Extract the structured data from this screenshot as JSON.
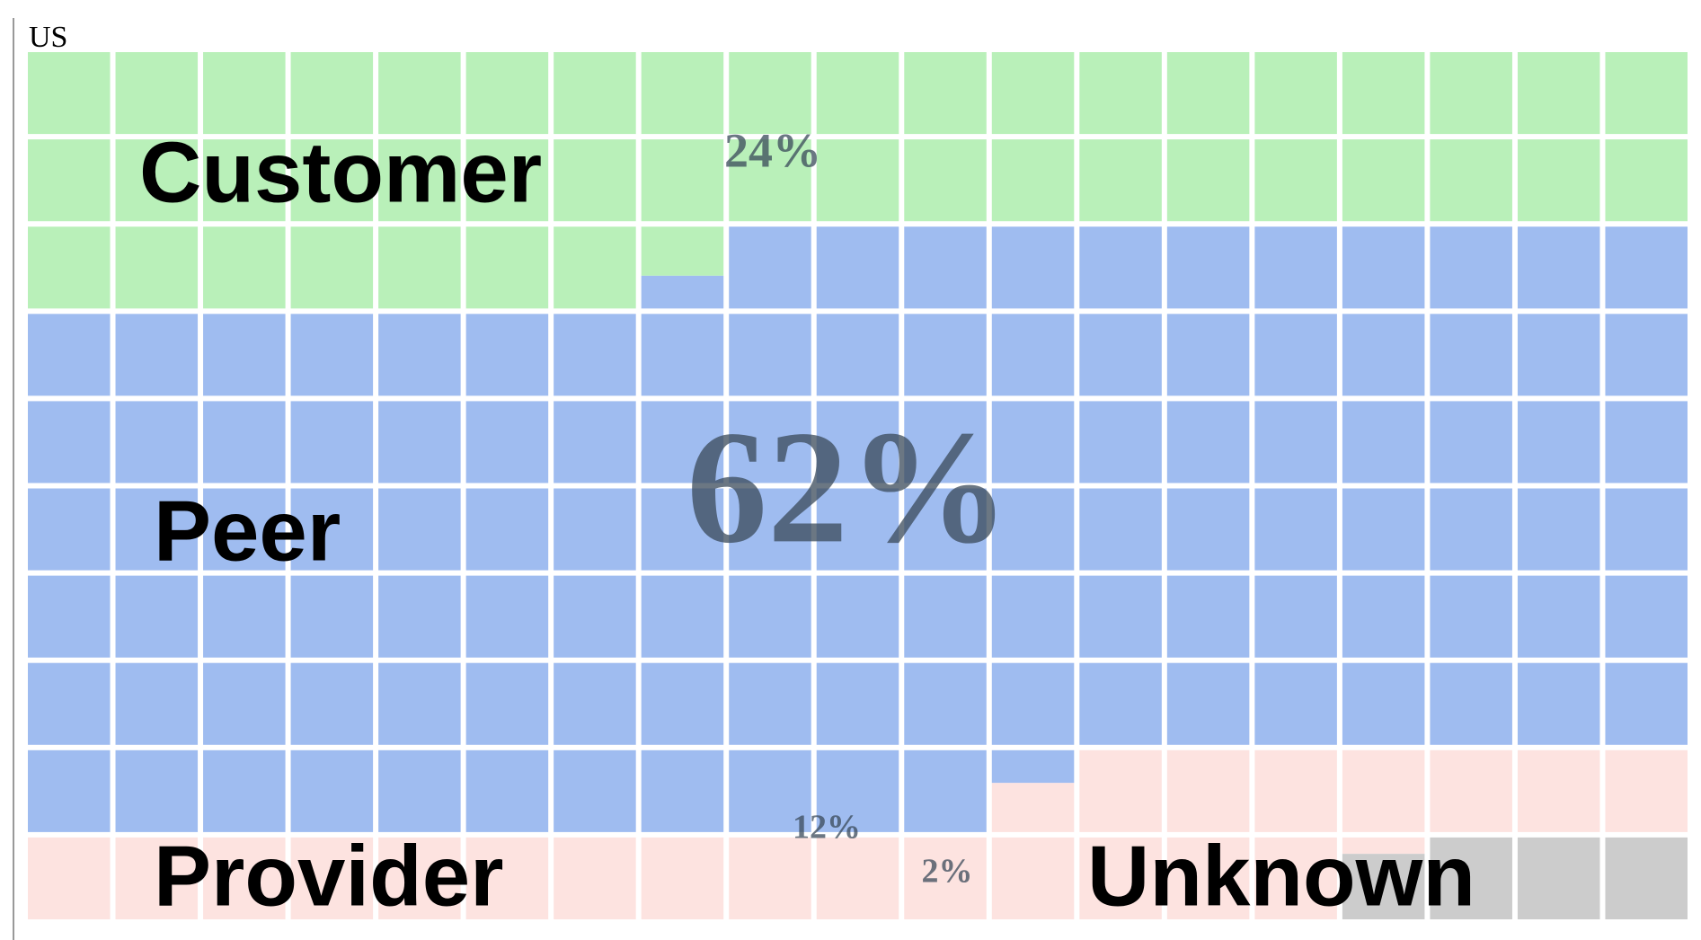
{
  "chart_data": {
    "type": "waffle",
    "title": "US",
    "categories": [
      "Customer",
      "Peer",
      "Provider",
      "Unknown"
    ],
    "values": [
      24,
      62,
      12,
      2
    ],
    "value_labels": [
      "24%",
      "62%",
      "12%",
      "2%"
    ],
    "colors": [
      "#b9f0b9",
      "#9fbcf0",
      "#fde3e0",
      "#cccccc"
    ]
  }
}
